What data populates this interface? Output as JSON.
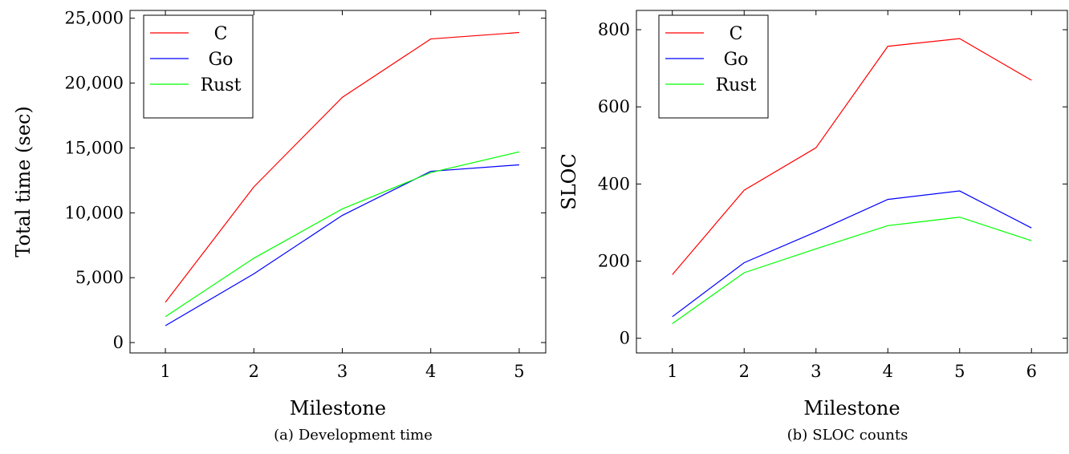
{
  "figures": [
    {
      "caption_tag": "(a)",
      "caption_text": "Development time",
      "chart_data": {
        "type": "line",
        "xlabel": "Milestone",
        "ylabel": "Total time (sec)",
        "x": [
          1,
          2,
          3,
          4,
          5
        ],
        "xlim": [
          0.6,
          5.3
        ],
        "ylim": [
          -800,
          25600
        ],
        "xticks": [
          1,
          2,
          3,
          4,
          5
        ],
        "yticks": [
          0,
          5000,
          10000,
          15000,
          20000,
          25000
        ],
        "ytick_labels": [
          "0",
          "5,000",
          "10,000",
          "15,000",
          "20,000",
          "25,000"
        ],
        "legend_position": "top-left",
        "series": [
          {
            "name": "C",
            "color": "#ff0000",
            "values": [
              3100,
              12000,
              18900,
              23400,
              23900
            ]
          },
          {
            "name": "Go",
            "color": "#0000ff",
            "values": [
              1300,
              5300,
              9800,
              13200,
              13700
            ]
          },
          {
            "name": "Rust",
            "color": "#00ff00",
            "values": [
              2000,
              6500,
              10300,
              13100,
              14700
            ]
          }
        ]
      }
    },
    {
      "caption_tag": "(b)",
      "caption_text": "SLOC counts",
      "chart_data": {
        "type": "line",
        "xlabel": "Milestone",
        "ylabel": "SLOC",
        "x": [
          1,
          2,
          3,
          4,
          5,
          6
        ],
        "xlim": [
          0.5,
          6.5
        ],
        "ylim": [
          -38,
          850
        ],
        "xticks": [
          1,
          2,
          3,
          4,
          5,
          6
        ],
        "yticks": [
          0,
          200,
          400,
          600,
          800
        ],
        "ytick_labels": [
          "0",
          "200",
          "400",
          "600",
          "800"
        ],
        "legend_position": "top-left",
        "series": [
          {
            "name": "C",
            "color": "#ff0000",
            "values": [
              165,
              384,
              494,
              757,
              777,
              669
            ]
          },
          {
            "name": "Go",
            "color": "#0000ff",
            "values": [
              56,
              196,
              276,
              360,
              382,
              286
            ]
          },
          {
            "name": "Rust",
            "color": "#00ff00",
            "values": [
              38,
              170,
              232,
              292,
              314,
              253
            ]
          }
        ]
      }
    }
  ]
}
